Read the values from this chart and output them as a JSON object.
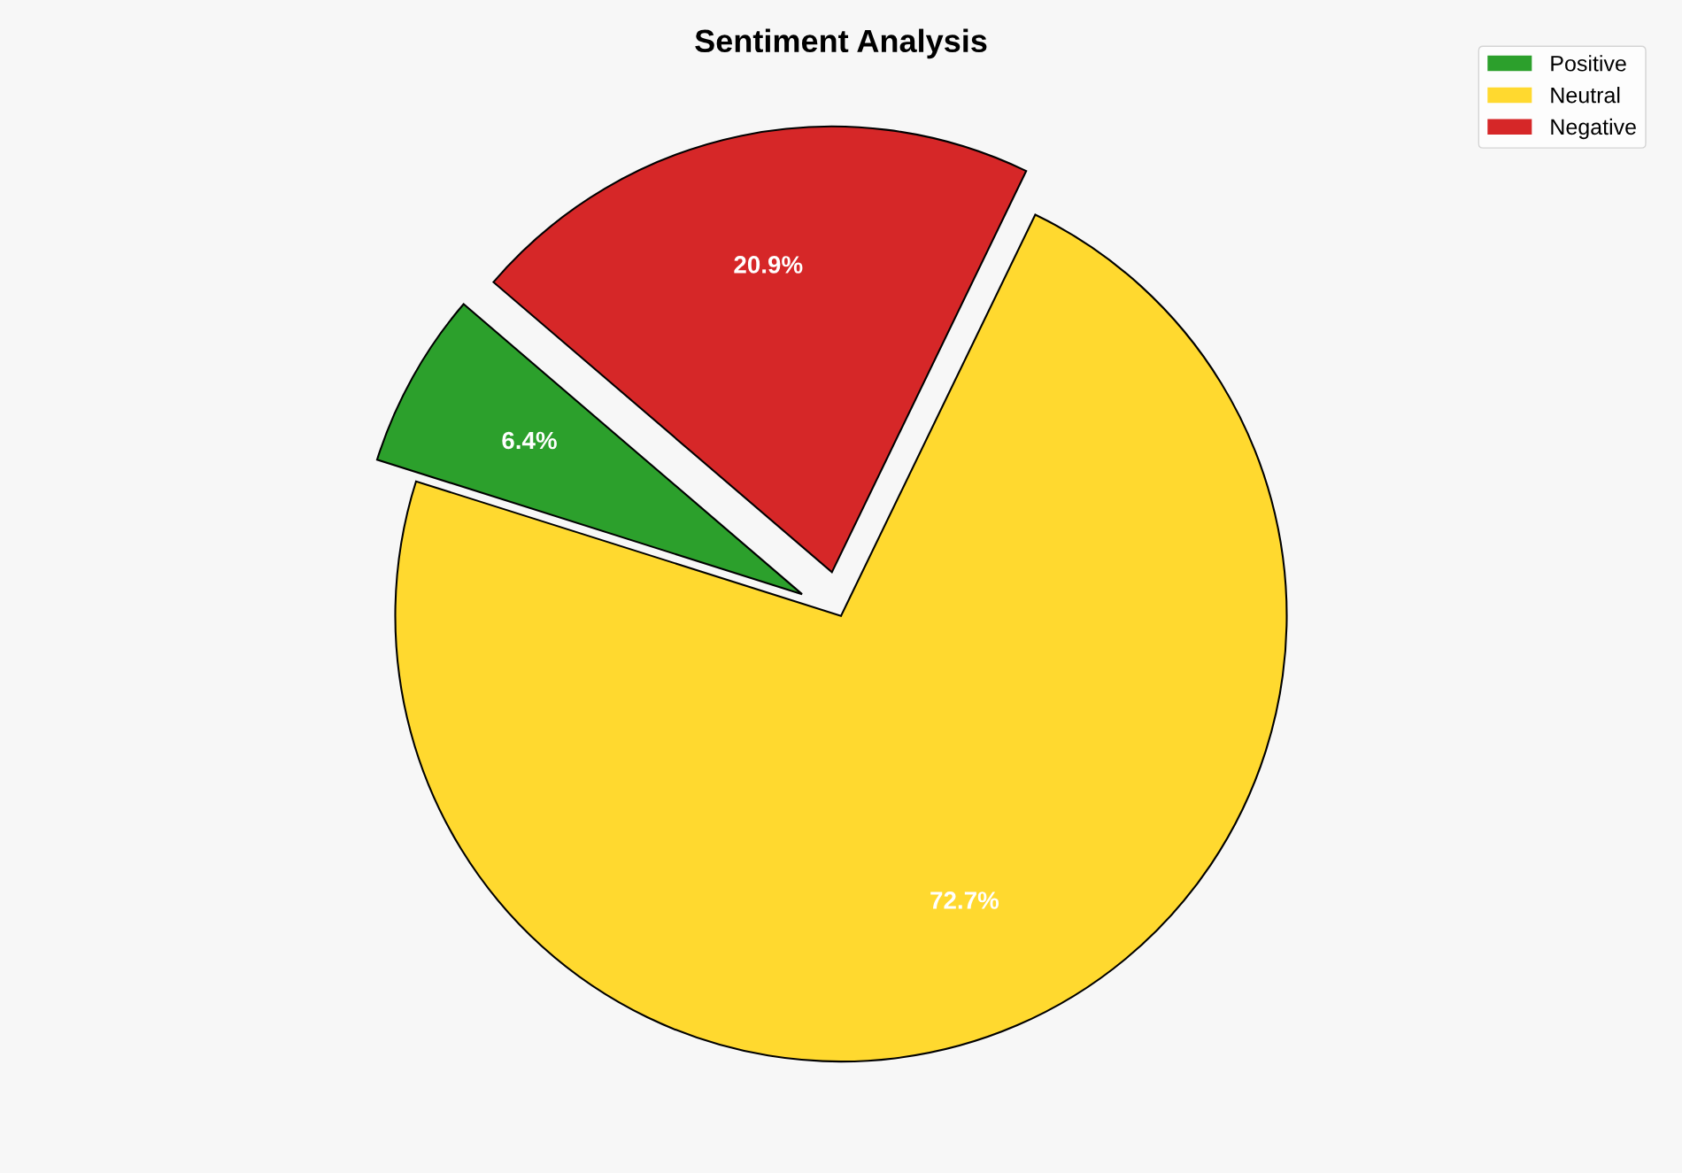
{
  "chart_data": {
    "type": "pie",
    "title": "Sentiment Analysis",
    "categories": [
      "Positive",
      "Neutral",
      "Negative"
    ],
    "values": [
      6.4,
      72.7,
      20.9
    ],
    "colors": [
      "#2ca02c",
      "#ffd92f",
      "#d62728"
    ],
    "value_labels": [
      "6.4%",
      "72.7%",
      "20.9%"
    ],
    "legend": "top right"
  }
}
